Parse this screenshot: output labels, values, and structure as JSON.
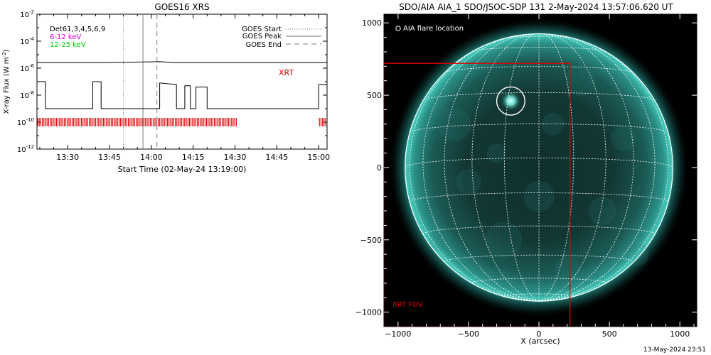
{
  "left_panel": {
    "title": "GOES16 XRS",
    "ylabel": "X-ray Flux (W m",
    "ylabel_sup": "-2",
    "ylabel_end": ")",
    "xlabel": "Start Time (02-May-24 13:19:00)",
    "detectors": "Det61,3,4,5,6,9",
    "band1_label": "6-12 keV",
    "band2_label": "12-25 keV",
    "xrt_label": "XRT",
    "legend": [
      "GOES Start",
      "GOES Peak",
      "GOES End"
    ]
  },
  "right_panel": {
    "title": "SDO/AIA AIA_1 SDO/JSOC-SDP 131  2-May-2024 13:57:06.620 UT",
    "annotation": "AIA flare location",
    "fov_label": "XRT FOV",
    "xlabel": "X (arcsec)"
  },
  "footer": {
    "timestamp": "13-May-2024 23:51"
  },
  "colors": {
    "xrt": "#e00000",
    "band1": "#dd00dd",
    "band2": "#00cc00",
    "sun_glow": "#2fb2a8",
    "grid": "#ffffff"
  },
  "chart_data": [
    {
      "type": "line",
      "title": "GOES16 XRS",
      "xlabel": "Start Time (02-May-24 13:19:00)",
      "ylabel": "X-ray Flux (W m-2)",
      "yscale": "log",
      "ylim": [
        1e-12,
        0.01
      ],
      "xlim": [
        "13:19",
        "15:03"
      ],
      "x_ticks": [
        "13:30",
        "13:45",
        "14:00",
        "14:15",
        "14:30",
        "14:45",
        "15:00"
      ],
      "y_ticks": [
        "10^-12",
        "10^-10",
        "10^-8",
        "10^-6",
        "10^-4",
        "10^-2"
      ],
      "series": [
        {
          "name": "",
          "color": "#000000",
          "points": [
            [
              "13:19",
              1e-07
            ],
            [
              "13:22",
              1e-07
            ],
            [
              "13:22",
              1e-09
            ],
            [
              "13:39",
              1e-09
            ],
            [
              "13:39",
              1e-07
            ],
            [
              "13:42",
              1e-07
            ],
            [
              "13:42",
              1e-09
            ],
            [
              "14:03",
              1e-09
            ],
            [
              "14:03",
              8e-08
            ],
            [
              "14:09",
              6e-08
            ],
            [
              "14:09",
              1e-09
            ],
            [
              "14:12",
              1e-09
            ],
            [
              "14:12",
              5e-08
            ],
            [
              "14:14",
              5e-08
            ],
            [
              "14:14",
              1e-09
            ],
            [
              "14:16",
              1e-09
            ],
            [
              "14:16",
              4e-08
            ],
            [
              "14:20",
              4e-08
            ],
            [
              "14:20",
              1e-09
            ],
            [
              "15:00",
              1e-09
            ],
            [
              "15:00",
              6e-08
            ],
            [
              "15:03",
              6e-08
            ]
          ]
        },
        {
          "name": "",
          "color": "#000000",
          "points": [
            [
              "13:19",
              2.5e-06
            ],
            [
              "13:22",
              2.5e-06
            ],
            [
              "13:39",
              2.5e-06
            ],
            [
              "13:42",
              2.5e-06
            ],
            [
              "14:03",
              3e-06
            ],
            [
              "14:09",
              2.5e-06
            ],
            [
              "14:12",
              2.5e-06
            ],
            [
              "14:14",
              2.5e-06
            ],
            [
              "14:16",
              2.5e-06
            ],
            [
              "14:20",
              2.5e-06
            ],
            [
              "15:00",
              2.5e-06
            ],
            [
              "15:03",
              2.5e-06
            ]
          ]
        }
      ],
      "xrt_coverage": [
        [
          "13:19",
          "14:31"
        ],
        [
          "15:00",
          "15:03"
        ]
      ],
      "xrt_level": 1e-10,
      "vlines": [
        {
          "name": "GOES Start",
          "time": "13:50",
          "style": "dotted"
        },
        {
          "name": "GOES Peak",
          "time": "13:57",
          "style": "solid"
        },
        {
          "name": "GOES End",
          "time": "14:02",
          "style": "dashed"
        }
      ],
      "legend": [
        "GOES Start",
        "GOES Peak",
        "GOES End"
      ],
      "legend_position": "top-right"
    },
    {
      "type": "image",
      "title": "SDO/AIA AIA_1 SDO/JSOC-SDP 131  2-May-2024 13:57:06.620 UT",
      "xlabel": "X (arcsec)",
      "ylabel": "",
      "xlim": [
        -1100,
        1120
      ],
      "ylim": [
        -1100,
        1060
      ],
      "x_ticks": [
        -1000,
        -500,
        0,
        500,
        1000
      ],
      "y_ticks": [
        -1000,
        -500,
        0,
        500,
        1000
      ],
      "solar_radius_arcsec": 950,
      "flare_location": {
        "x": -200,
        "y": 460,
        "radius": 100
      },
      "xrt_fov": {
        "x0": -1100,
        "x1": 220,
        "y0": -1100,
        "y1": 720
      }
    }
  ]
}
